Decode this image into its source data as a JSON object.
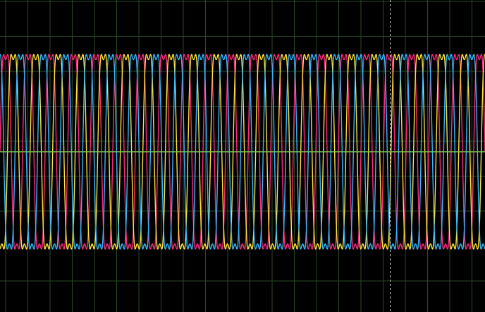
{
  "screen": {
    "background": "#000000",
    "grid_color": "#2a4a2a",
    "zero_line_color": "#7cc85a",
    "cursor_color": "#d8d8d8"
  },
  "chart_data": {
    "type": "line",
    "title": "",
    "xlabel": "",
    "ylabel": "",
    "grid": true,
    "grid_divisions": {
      "x": 22,
      "y": 8
    },
    "ylim": [
      -1.0,
      1.0
    ],
    "xlim": [
      0,
      21.5
    ],
    "cycles_in_view": 21.5,
    "cursor": {
      "position_div": 17.3,
      "style": "dashed"
    },
    "zero_line": true,
    "series": [
      {
        "color": "#ff2a7f",
        "amplitude": 0.86,
        "phase_deg": 0,
        "harmonic3_ratio": 0.18
      },
      {
        "color": "#ffe23a",
        "amplitude": 0.86,
        "phase_deg": 120,
        "harmonic3_ratio": 0.18
      },
      {
        "color": "#36b8ff",
        "amplitude": 0.86,
        "phase_deg": 240,
        "harmonic3_ratio": 0.18
      }
    ]
  }
}
